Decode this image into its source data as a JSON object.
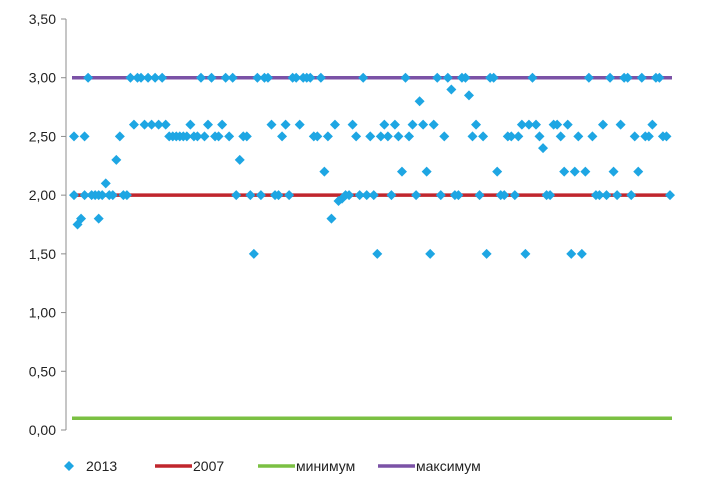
{
  "chart_data": {
    "type": "scatter",
    "title": "",
    "xlabel": "",
    "ylabel": "",
    "ylim": [
      0,
      3.5
    ],
    "y_ticks": [
      "0,00",
      "0,50",
      "1,00",
      "1,50",
      "2,00",
      "2,50",
      "3,00",
      "3,50"
    ],
    "grid": false,
    "legend_position": "bottom",
    "x_count": 170,
    "series": [
      {
        "name": "2013",
        "kind": "scatter",
        "color": "#1ea6e3",
        "marker": "diamond",
        "points": [
          [
            1,
            2.5
          ],
          [
            1,
            2.0
          ],
          [
            2,
            1.75
          ],
          [
            3,
            1.8
          ],
          [
            4,
            2.5
          ],
          [
            4,
            2.0
          ],
          [
            5,
            3.0
          ],
          [
            6,
            2.0
          ],
          [
            7,
            2.0
          ],
          [
            8,
            1.8
          ],
          [
            8,
            2.0
          ],
          [
            9,
            2.0
          ],
          [
            10,
            2.1
          ],
          [
            11,
            2.0
          ],
          [
            12,
            2.0
          ],
          [
            13,
            2.3
          ],
          [
            14,
            2.5
          ],
          [
            15,
            2.0
          ],
          [
            16,
            2.0
          ],
          [
            17,
            3.0
          ],
          [
            18,
            2.6
          ],
          [
            19,
            3.0
          ],
          [
            20,
            3.0
          ],
          [
            21,
            2.6
          ],
          [
            22,
            3.0
          ],
          [
            23,
            2.6
          ],
          [
            24,
            3.0
          ],
          [
            25,
            2.6
          ],
          [
            26,
            3.0
          ],
          [
            27,
            2.6
          ],
          [
            28,
            2.5
          ],
          [
            29,
            2.5
          ],
          [
            30,
            2.5
          ],
          [
            31,
            2.5
          ],
          [
            32,
            2.5
          ],
          [
            33,
            2.5
          ],
          [
            34,
            2.6
          ],
          [
            35,
            2.5
          ],
          [
            36,
            2.5
          ],
          [
            37,
            3.0
          ],
          [
            38,
            2.5
          ],
          [
            39,
            2.6
          ],
          [
            40,
            3.0
          ],
          [
            41,
            2.5
          ],
          [
            42,
            2.5
          ],
          [
            43,
            2.6
          ],
          [
            44,
            3.0
          ],
          [
            45,
            2.5
          ],
          [
            46,
            3.0
          ],
          [
            47,
            2.0
          ],
          [
            48,
            2.3
          ],
          [
            49,
            2.5
          ],
          [
            50,
            2.5
          ],
          [
            51,
            2.0
          ],
          [
            52,
            1.5
          ],
          [
            53,
            3.0
          ],
          [
            54,
            2.0
          ],
          [
            55,
            3.0
          ],
          [
            56,
            3.0
          ],
          [
            57,
            2.6
          ],
          [
            58,
            2.0
          ],
          [
            59,
            2.0
          ],
          [
            60,
            2.5
          ],
          [
            61,
            2.6
          ],
          [
            62,
            2.0
          ],
          [
            63,
            3.0
          ],
          [
            64,
            3.0
          ],
          [
            65,
            2.6
          ],
          [
            66,
            3.0
          ],
          [
            67,
            3.0
          ],
          [
            68,
            3.0
          ],
          [
            69,
            2.5
          ],
          [
            70,
            2.5
          ],
          [
            71,
            3.0
          ],
          [
            72,
            2.2
          ],
          [
            73,
            2.5
          ],
          [
            74,
            1.8
          ],
          [
            75,
            2.6
          ],
          [
            76,
            1.95
          ],
          [
            77,
            1.97
          ],
          [
            78,
            2.0
          ],
          [
            79,
            2.0
          ],
          [
            80,
            2.6
          ],
          [
            81,
            2.5
          ],
          [
            82,
            2.0
          ],
          [
            83,
            3.0
          ],
          [
            84,
            2.0
          ],
          [
            85,
            2.5
          ],
          [
            86,
            2.0
          ],
          [
            87,
            1.5
          ],
          [
            88,
            2.5
          ],
          [
            89,
            2.6
          ],
          [
            90,
            2.5
          ],
          [
            91,
            2.0
          ],
          [
            92,
            2.6
          ],
          [
            93,
            2.5
          ],
          [
            94,
            2.2
          ],
          [
            95,
            3.0
          ],
          [
            96,
            2.5
          ],
          [
            97,
            2.6
          ],
          [
            98,
            2.0
          ],
          [
            99,
            2.8
          ],
          [
            100,
            2.6
          ],
          [
            101,
            2.2
          ],
          [
            102,
            1.5
          ],
          [
            103,
            2.6
          ],
          [
            104,
            3.0
          ],
          [
            105,
            2.0
          ],
          [
            106,
            2.5
          ],
          [
            107,
            3.0
          ],
          [
            108,
            2.9
          ],
          [
            109,
            2.0
          ],
          [
            110,
            2.0
          ],
          [
            111,
            3.0
          ],
          [
            112,
            3.0
          ],
          [
            113,
            2.85
          ],
          [
            114,
            2.5
          ],
          [
            115,
            2.6
          ],
          [
            116,
            2.0
          ],
          [
            117,
            2.5
          ],
          [
            118,
            1.5
          ],
          [
            119,
            3.0
          ],
          [
            120,
            3.0
          ],
          [
            121,
            2.2
          ],
          [
            122,
            2.0
          ],
          [
            123,
            2.0
          ],
          [
            124,
            2.5
          ],
          [
            125,
            2.5
          ],
          [
            126,
            2.0
          ],
          [
            127,
            2.5
          ],
          [
            128,
            2.6
          ],
          [
            129,
            1.5
          ],
          [
            130,
            2.6
          ],
          [
            131,
            3.0
          ],
          [
            132,
            2.6
          ],
          [
            133,
            2.5
          ],
          [
            134,
            2.4
          ],
          [
            135,
            2.0
          ],
          [
            136,
            2.0
          ],
          [
            137,
            2.6
          ],
          [
            138,
            2.6
          ],
          [
            139,
            2.5
          ],
          [
            140,
            2.2
          ],
          [
            141,
            2.6
          ],
          [
            142,
            1.5
          ],
          [
            143,
            2.2
          ],
          [
            144,
            2.5
          ],
          [
            145,
            1.5
          ],
          [
            146,
            2.2
          ],
          [
            147,
            3.0
          ],
          [
            148,
            2.5
          ],
          [
            149,
            2.0
          ],
          [
            150,
            2.0
          ],
          [
            151,
            2.6
          ],
          [
            152,
            2.0
          ],
          [
            153,
            3.0
          ],
          [
            154,
            2.2
          ],
          [
            155,
            2.0
          ],
          [
            156,
            2.6
          ],
          [
            157,
            3.0
          ],
          [
            158,
            3.0
          ],
          [
            159,
            2.0
          ],
          [
            160,
            2.5
          ],
          [
            161,
            2.2
          ],
          [
            162,
            3.0
          ],
          [
            163,
            2.5
          ],
          [
            164,
            2.5
          ],
          [
            165,
            2.6
          ],
          [
            166,
            3.0
          ],
          [
            167,
            3.0
          ],
          [
            168,
            2.5
          ],
          [
            169,
            2.5
          ],
          [
            170,
            2.0
          ]
        ]
      },
      {
        "name": "2007",
        "kind": "line",
        "color": "#c0262d",
        "value": 2.0
      },
      {
        "name": "минимум",
        "kind": "line",
        "color": "#7bc043",
        "value": 0.1
      },
      {
        "name": "максимум",
        "kind": "line",
        "color": "#7b52a6",
        "value": 3.0
      }
    ]
  }
}
